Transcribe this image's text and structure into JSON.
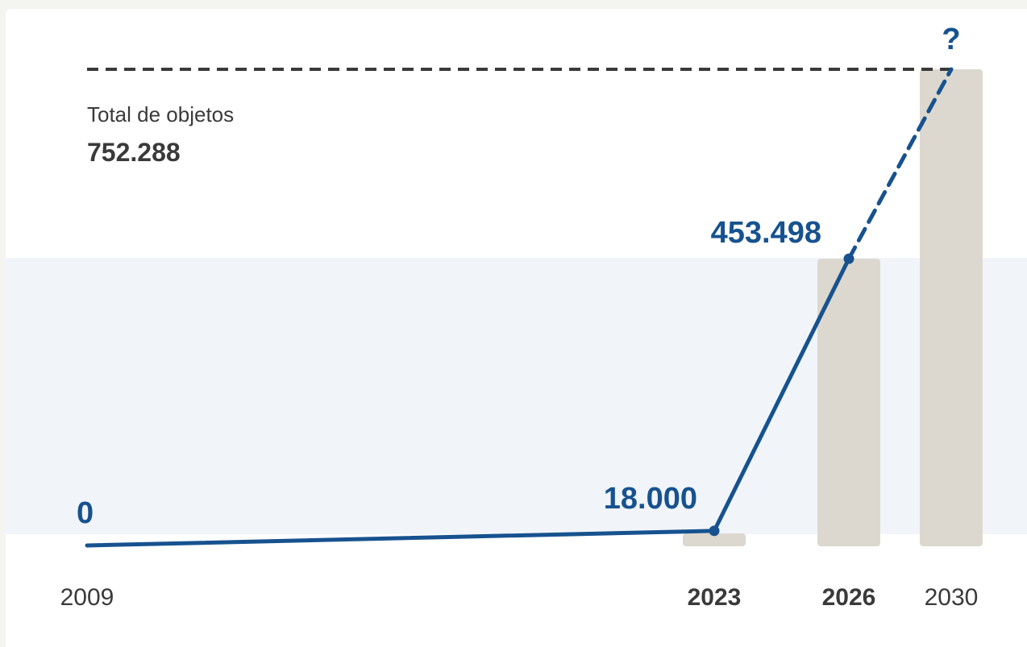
{
  "total": {
    "label": "Total de objetos",
    "value": "752.288"
  },
  "chart_data": {
    "type": "bar",
    "categories": [
      "2009",
      "2023",
      "2026",
      "2030"
    ],
    "bold_categories": [
      "2023",
      "2026"
    ],
    "bars": [
      {
        "x": "2023",
        "value": 18000
      },
      {
        "x": "2026",
        "value": 453498
      },
      {
        "x": "2030",
        "value": 752288
      }
    ],
    "line": {
      "points": [
        {
          "x": "2009",
          "value": 0,
          "label": "0"
        },
        {
          "x": "2023",
          "value": 18000,
          "label": "18.000"
        },
        {
          "x": "2026",
          "value": 453498,
          "label": "453.498"
        }
      ],
      "projection": {
        "x": "2030",
        "value": 752288,
        "label": "?"
      }
    },
    "reference_line": {
      "value": 752288,
      "style": "dashed"
    },
    "highlight_band": {
      "from": 0,
      "to": 453498
    },
    "colors": {
      "line": "#17528f",
      "bars": "#dcd8cf",
      "band": "#f1f5fa",
      "reference": "#3a3a3a"
    }
  }
}
